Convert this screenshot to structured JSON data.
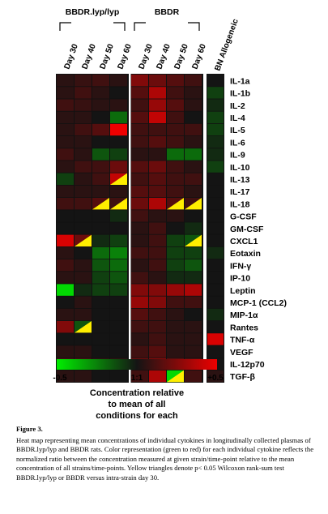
{
  "chart_data": {
    "type": "heatmap",
    "group_labels": [
      "BBDR.lyp/lyp",
      "BBDR"
    ],
    "columns": [
      {
        "label": "Day 30",
        "group": 0
      },
      {
        "label": "Day 40",
        "group": 0
      },
      {
        "label": "Day 50",
        "group": 0
      },
      {
        "label": "Day 60",
        "group": 0
      },
      {
        "label": "Day 30",
        "group": 1
      },
      {
        "label": "Day 40",
        "group": 1
      },
      {
        "label": "Day 50",
        "group": 1
      },
      {
        "label": "Day 60",
        "group": 1
      },
      {
        "label": "BN Allogeneic",
        "group": 2
      }
    ],
    "rows": [
      "IL-1a",
      "IL-1b",
      "IL-2",
      "IL-4",
      "IL-5",
      "IL-6",
      "IL-9",
      "IL-10",
      "IL-13",
      "IL-17",
      "IL-18",
      "G-CSF",
      "GM-CSF",
      "CXCL1",
      "Eotaxin",
      "IFN-γ",
      "IP-10",
      "Leptin",
      "MCP-1 (CCL2)",
      "MIP-1α",
      "Rantes",
      "TNF-α",
      "VEGF",
      "IL-12p70",
      "TGF-β"
    ],
    "values": [
      [
        0.05,
        0.08,
        0.1,
        0.05,
        0.25,
        0.2,
        0.15,
        0.1,
        0.0
      ],
      [
        0.05,
        0.1,
        0.05,
        0.0,
        0.15,
        0.35,
        0.1,
        0.05,
        -0.1
      ],
      [
        0.1,
        0.08,
        0.05,
        0.05,
        0.1,
        0.3,
        0.15,
        0.05,
        -0.05
      ],
      [
        0.05,
        0.05,
        0.0,
        -0.2,
        0.15,
        0.4,
        0.1,
        0.0,
        -0.1
      ],
      [
        0.05,
        0.1,
        0.15,
        0.5,
        0.1,
        0.1,
        0.1,
        0.1,
        -0.1
      ],
      [
        0.05,
        0.05,
        0.0,
        0.0,
        0.1,
        0.15,
        0.1,
        0.05,
        -0.05
      ],
      [
        0.1,
        0.05,
        -0.15,
        -0.1,
        0.05,
        0.05,
        -0.2,
        -0.2,
        -0.05
      ],
      [
        0.05,
        0.1,
        0.1,
        0.2,
        0.15,
        0.2,
        0.1,
        0.05,
        -0.1
      ],
      [
        -0.1,
        0.05,
        0.1,
        0.4,
        0.1,
        0.15,
        0.1,
        0.1,
        0.0
      ],
      [
        0.05,
        0.05,
        0.05,
        0.05,
        0.15,
        0.15,
        0.1,
        0.05,
        0.0
      ],
      [
        0.1,
        0.1,
        0.15,
        0.1,
        0.2,
        0.35,
        0.15,
        0.1,
        0.0
      ],
      [
        0.0,
        0.0,
        0.0,
        -0.05,
        0.1,
        0.05,
        0.05,
        0.0,
        0.0
      ],
      [
        0.0,
        0.0,
        0.0,
        0.0,
        0.05,
        0.1,
        0.0,
        -0.05,
        0.0
      ],
      [
        0.45,
        0.2,
        -0.05,
        -0.1,
        0.05,
        0.1,
        -0.1,
        -0.15,
        0.0
      ],
      [
        0.05,
        0.0,
        -0.2,
        -0.25,
        0.1,
        0.1,
        -0.1,
        -0.1,
        -0.05
      ],
      [
        0.1,
        0.05,
        -0.15,
        -0.2,
        0.05,
        0.1,
        -0.1,
        -0.15,
        0.0
      ],
      [
        0.05,
        0.05,
        -0.1,
        -0.15,
        0.1,
        0.05,
        -0.05,
        -0.05,
        0.0
      ],
      [
        -0.45,
        -0.05,
        -0.1,
        -0.1,
        0.25,
        0.25,
        0.3,
        0.35,
        0.0
      ],
      [
        0.0,
        0.05,
        0.0,
        0.0,
        0.3,
        0.25,
        0.1,
        0.1,
        0.0
      ],
      [
        0.05,
        0.05,
        0.0,
        0.0,
        0.15,
        0.1,
        0.05,
        0.0,
        -0.05
      ],
      [
        0.25,
        -0.15,
        0.0,
        0.0,
        0.1,
        0.1,
        0.05,
        0.05,
        0.0
      ],
      [
        0.0,
        0.0,
        0.0,
        0.0,
        0.05,
        0.1,
        0.05,
        0.05,
        0.45
      ],
      [
        0.05,
        0.05,
        0.0,
        0.0,
        0.1,
        0.15,
        0.05,
        0.05,
        0.0
      ],
      [
        0.1,
        0.1,
        0.05,
        0.05,
        0.2,
        0.25,
        0.15,
        0.1,
        0.0
      ],
      [
        0.05,
        0.05,
        0.0,
        0.0,
        0.1,
        0.35,
        -0.45,
        0.1,
        0.05
      ]
    ],
    "significant": [
      [
        8,
        3
      ],
      [
        10,
        2
      ],
      [
        10,
        3
      ],
      [
        10,
        6
      ],
      [
        10,
        7
      ],
      [
        13,
        1
      ],
      [
        13,
        7
      ],
      [
        20,
        1
      ],
      [
        24,
        6
      ]
    ],
    "color_scale": {
      "min": -0.5,
      "mid": 0,
      "max": 0.5,
      "low_color": "#00ee00",
      "mid_color": "#141414",
      "high_color": "#ee0000",
      "marker_color": "#ffee00"
    },
    "colorbar": {
      "tick_labels": [
        "-0.5",
        "1:1",
        "+0.5"
      ],
      "label": "Concentration relative to mean of all conditions for each cytokine"
    }
  },
  "caption": {
    "figure_label": "Figure 3.",
    "text": "Heat map representing mean concentrations of individual cytokines in longitudinally collected plasmas of BBDR.lyp/lyp and BBDR rats. Color representation (green to red) for each individual cytokine reflects the normalized ratio between the concentration measured at given strain/time-point relative to the mean concentration of all strains/time-points. Yellow triangles denote p< 0.05 Wilcoxon rank-sum test BBDR.lyp/lyp or BBDR versus intra-strain day 30."
  }
}
